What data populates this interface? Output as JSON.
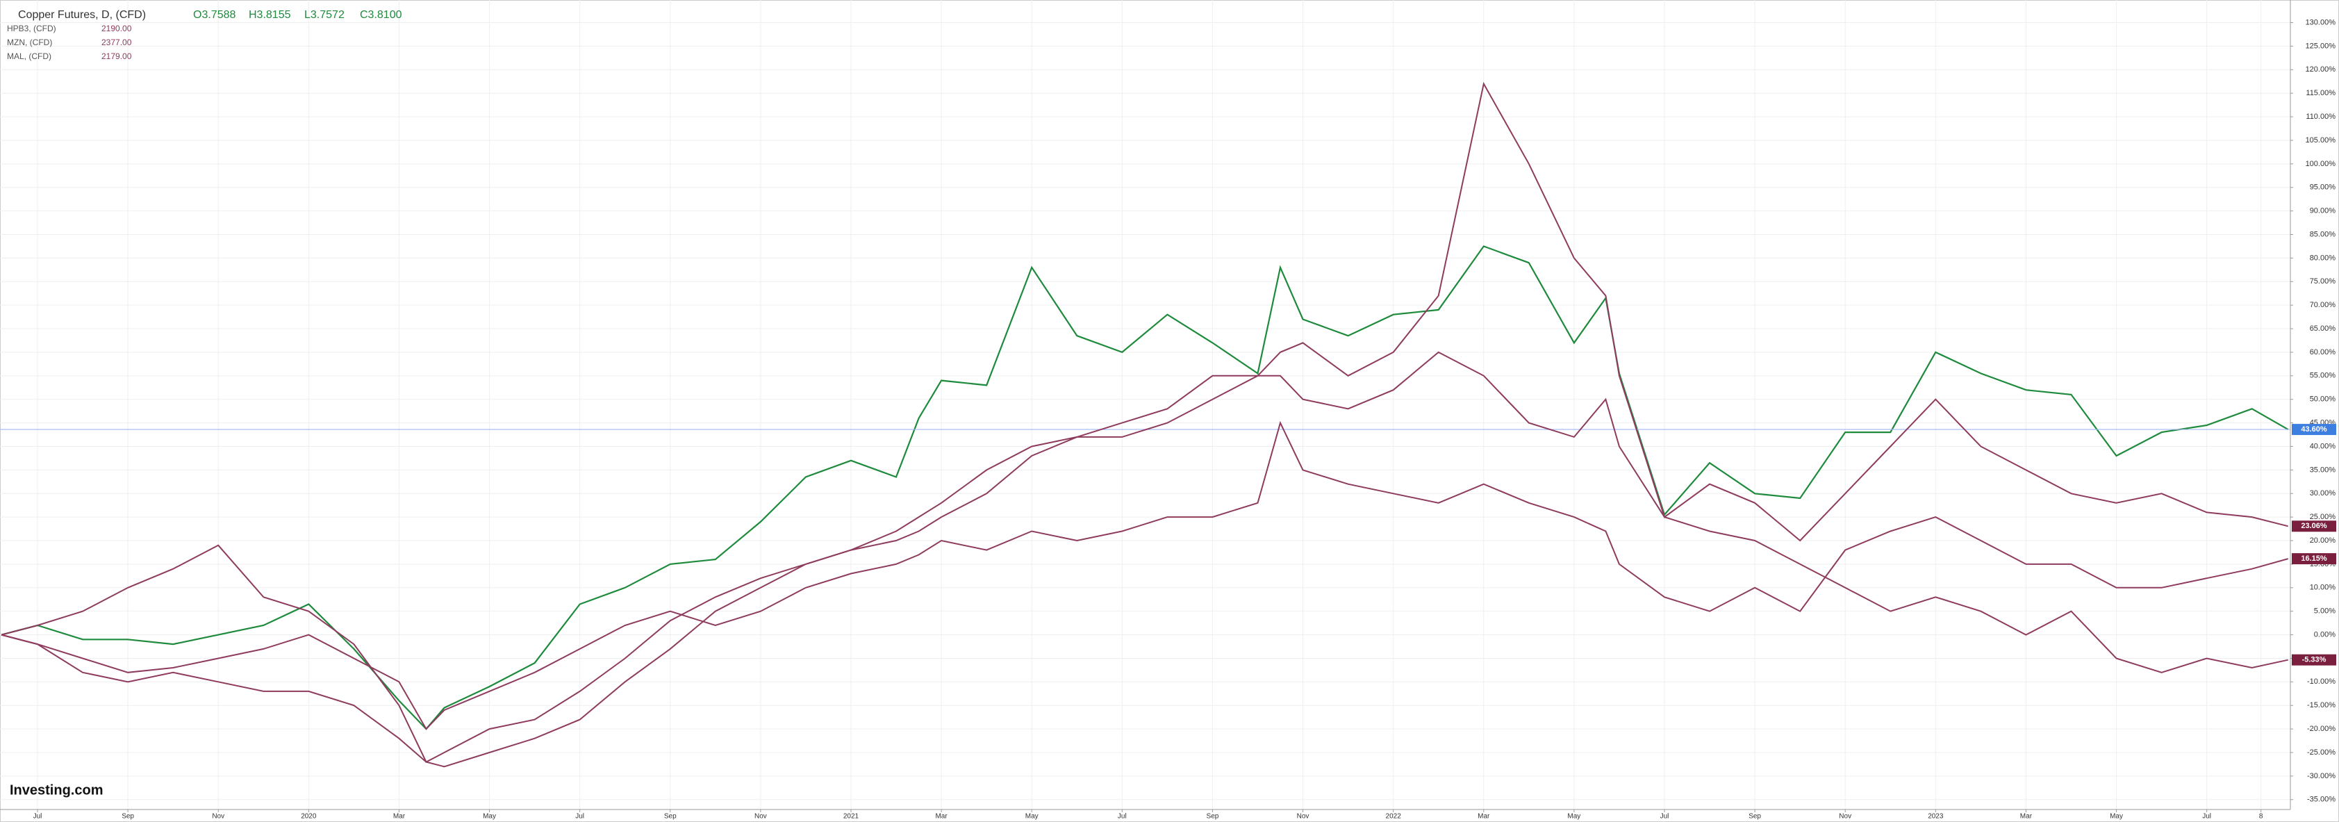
{
  "chart_data": {
    "type": "line",
    "title": "Copper Futures, D, (CFD)",
    "ohlc": [
      "O3.7588",
      "H3.8155",
      "L3.7572",
      "C3.8100"
    ],
    "brand": "Investing.com",
    "x": [
      -0.8,
      0,
      1,
      2,
      3,
      4,
      5,
      6,
      7,
      8,
      8.6,
      9,
      10,
      11,
      12,
      13,
      14,
      15,
      16,
      17,
      18,
      19,
      19.5,
      20,
      21,
      22,
      23,
      24,
      25,
      26,
      27,
      27.5,
      28,
      29,
      30,
      31,
      32,
      33,
      34,
      34.7,
      35,
      36,
      37,
      38,
      39,
      40,
      41,
      42,
      43,
      44,
      45,
      46,
      47,
      48,
      49,
      49.8
    ],
    "series": [
      {
        "name": "Copper Futures",
        "color": "#1e8a3c",
        "tag_color": "#3d7fe0",
        "values": [
          0,
          2,
          -1,
          -1,
          -2,
          0,
          2,
          6.5,
          -3,
          -14,
          -20,
          -15.5,
          -11,
          -6,
          6.5,
          10,
          15,
          16,
          24,
          33.5,
          37,
          33.5,
          46,
          54,
          53,
          78,
          63.5,
          60,
          68,
          62,
          55.5,
          78,
          67,
          63.5,
          68,
          69,
          82.5,
          79,
          62,
          71.5,
          55.5,
          25.5,
          36.5,
          30,
          29,
          43,
          43,
          60,
          55.5,
          52,
          51,
          38,
          43,
          44.5,
          48,
          43.6
        ],
        "value_labels": [
          null,
          null,
          null,
          null,
          null,
          null,
          null,
          null,
          null,
          null,
          null,
          null,
          null,
          null,
          null,
          null,
          null,
          null,
          null,
          null,
          null,
          null,
          null,
          null,
          null,
          null,
          null,
          null,
          null,
          null,
          null,
          null,
          null,
          null,
          null,
          null,
          null,
          null,
          null,
          null,
          null,
          null,
          null,
          null,
          null,
          null,
          null,
          null,
          null,
          null,
          null,
          null,
          null,
          null,
          null,
          "43.60%"
        ]
      },
      {
        "name": "HPB3, (CFD)",
        "price": "2190.00",
        "color": "#8e3b5e",
        "tag_color": "#7a1f3d",
        "values": [
          0,
          2,
          5,
          10,
          14,
          19,
          8,
          5,
          -2,
          -15,
          -27,
          -25,
          -20,
          -18,
          -12,
          -5,
          3,
          8,
          12,
          15,
          18,
          20,
          22,
          25,
          30,
          38,
          42,
          42,
          45,
          50,
          55,
          60,
          62,
          55,
          60,
          72,
          117,
          100,
          80,
          72,
          55,
          25,
          32,
          28,
          20,
          30,
          40,
          50,
          40,
          35,
          30,
          28,
          30,
          26,
          25,
          23.06
        ],
        "value_labels": [
          null,
          null,
          null,
          null,
          null,
          null,
          null,
          null,
          null,
          null,
          null,
          null,
          null,
          null,
          null,
          null,
          null,
          null,
          null,
          null,
          null,
          null,
          null,
          null,
          null,
          null,
          null,
          null,
          null,
          null,
          null,
          null,
          null,
          null,
          null,
          null,
          null,
          null,
          null,
          null,
          null,
          null,
          null,
          null,
          null,
          null,
          null,
          null,
          null,
          null,
          null,
          null,
          null,
          null,
          null,
          "23.06%"
        ]
      },
      {
        "name": "MZN, (CFD)",
        "price": "2377.00",
        "color": "#8e3b5e",
        "tag_color": "#7a1f3d",
        "values": [
          0,
          -2,
          -5,
          -8,
          -7,
          -5,
          -3,
          0,
          -5,
          -10,
          -20,
          -16,
          -12,
          -8,
          -3,
          2,
          5,
          2,
          5,
          10,
          13,
          15,
          17,
          20,
          18,
          22,
          20,
          22,
          25,
          25,
          28,
          45,
          35,
          32,
          30,
          28,
          32,
          28,
          25,
          22,
          15,
          8,
          5,
          10,
          5,
          18,
          22,
          25,
          20,
          15,
          15,
          10,
          10,
          12,
          14,
          16.15
        ],
        "value_labels": [
          null,
          null,
          null,
          null,
          null,
          null,
          null,
          null,
          null,
          null,
          null,
          null,
          null,
          null,
          null,
          null,
          null,
          null,
          null,
          null,
          null,
          null,
          null,
          null,
          null,
          null,
          null,
          null,
          null,
          null,
          null,
          null,
          null,
          null,
          null,
          null,
          null,
          null,
          null,
          null,
          null,
          null,
          null,
          null,
          null,
          null,
          null,
          null,
          null,
          null,
          null,
          null,
          null,
          null,
          null,
          "16.15%"
        ]
      },
      {
        "name": "MAL, (CFD)",
        "price": "2179.00",
        "color": "#8e3b5e",
        "tag_color": "#7a1f3d",
        "values": [
          0,
          -2,
          -8,
          -10,
          -8,
          -10,
          -12,
          -12,
          -15,
          -22,
          -27,
          -28,
          -25,
          -22,
          -18,
          -10,
          -3,
          5,
          10,
          15,
          18,
          22,
          25,
          28,
          35,
          40,
          42,
          45,
          48,
          55,
          55,
          55,
          50,
          48,
          52,
          60,
          55,
          45,
          42,
          50,
          40,
          25,
          22,
          20,
          15,
          10,
          5,
          8,
          5,
          0,
          5,
          -5,
          -8,
          -5,
          -7,
          -5.33
        ],
        "value_labels": [
          null,
          null,
          null,
          null,
          null,
          null,
          null,
          null,
          null,
          null,
          null,
          null,
          null,
          null,
          null,
          null,
          null,
          null,
          null,
          null,
          null,
          null,
          null,
          null,
          null,
          null,
          null,
          null,
          null,
          null,
          null,
          null,
          null,
          null,
          null,
          null,
          null,
          null,
          null,
          null,
          null,
          null,
          null,
          null,
          null,
          null,
          null,
          null,
          null,
          null,
          null,
          null,
          null,
          null,
          null,
          "-5.33%"
        ]
      }
    ],
    "xlim": [
      -0.83,
      49.85
    ],
    "xticks": [
      {
        "value": 0,
        "label": "Jul"
      },
      {
        "value": 2,
        "label": "Sep"
      },
      {
        "value": 4,
        "label": "Nov"
      },
      {
        "value": 6,
        "label": "2020"
      },
      {
        "value": 8,
        "label": "Mar"
      },
      {
        "value": 10,
        "label": "May"
      },
      {
        "value": 12,
        "label": "Jul"
      },
      {
        "value": 14,
        "label": "Sep"
      },
      {
        "value": 16,
        "label": "Nov"
      },
      {
        "value": 18,
        "label": "2021"
      },
      {
        "value": 20,
        "label": "Mar"
      },
      {
        "value": 22,
        "label": "May"
      },
      {
        "value": 24,
        "label": "Jul"
      },
      {
        "value": 26,
        "label": "Sep"
      },
      {
        "value": 28,
        "label": "Nov"
      },
      {
        "value": 30,
        "label": "2022"
      },
      {
        "value": 32,
        "label": "Mar"
      },
      {
        "value": 34,
        "label": "May"
      },
      {
        "value": 36,
        "label": "Jul"
      },
      {
        "value": 38,
        "label": "Sep"
      },
      {
        "value": 40,
        "label": "Nov"
      },
      {
        "value": 42,
        "label": "2023"
      },
      {
        "value": 44,
        "label": "Mar"
      },
      {
        "value": 46,
        "label": "May"
      },
      {
        "value": 48,
        "label": "Jul"
      },
      {
        "value": 49.2,
        "label": "8"
      }
    ],
    "ylim": [
      -37.1,
      134.8
    ],
    "yticks": [
      {
        "value": -35,
        "label": "-35.00%"
      },
      {
        "value": -30,
        "label": "-30.00%"
      },
      {
        "value": -25,
        "label": "-25.00%"
      },
      {
        "value": -20,
        "label": "-20.00%"
      },
      {
        "value": -15,
        "label": "-15.00%"
      },
      {
        "value": -10,
        "label": "-10.00%"
      },
      {
        "value": -5,
        "label": "-5.00%"
      },
      {
        "value": 0,
        "label": "0.00%"
      },
      {
        "value": 5,
        "label": "5.00%"
      },
      {
        "value": 10,
        "label": "10.00%"
      },
      {
        "value": 15,
        "label": "15.00%"
      },
      {
        "value": 20,
        "label": "20.00%"
      },
      {
        "value": 25,
        "label": "25.00%"
      },
      {
        "value": 30,
        "label": "30.00%"
      },
      {
        "value": 35,
        "label": "35.00%"
      },
      {
        "value": 40,
        "label": "40.00%"
      },
      {
        "value": 45,
        "label": "45.00%"
      },
      {
        "value": 50,
        "label": "50.00%"
      },
      {
        "value": 55,
        "label": "55.00%"
      },
      {
        "value": 60,
        "label": "60.00%"
      },
      {
        "value": 65,
        "label": "65.00%"
      },
      {
        "value": 70,
        "label": "70.00%"
      },
      {
        "value": 75,
        "label": "75.00%"
      },
      {
        "value": 80,
        "label": "80.00%"
      },
      {
        "value": 85,
        "label": "85.00%"
      },
      {
        "value": 90,
        "label": "90.00%"
      },
      {
        "value": 95,
        "label": "95.00%"
      },
      {
        "value": 100,
        "label": "100.00%"
      },
      {
        "value": 105,
        "label": "105.00%"
      },
      {
        "value": 110,
        "label": "110.00%"
      },
      {
        "value": 115,
        "label": "115.00%"
      },
      {
        "value": 120,
        "label": "120.00%"
      },
      {
        "value": 125,
        "label": "125.00%"
      },
      {
        "value": 130,
        "label": "130.00%"
      }
    ],
    "grid": true
  }
}
